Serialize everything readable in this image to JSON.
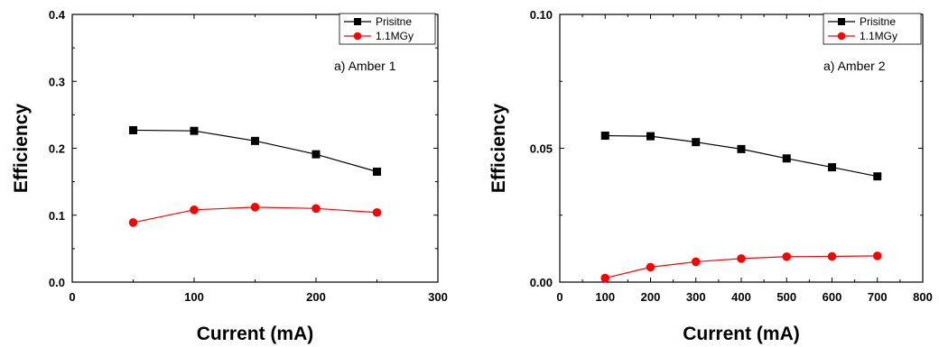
{
  "chart_data": [
    {
      "type": "line",
      "xlabel": "Current (mA)",
      "ylabel": "Efficiency",
      "xlim": [
        0,
        300
      ],
      "ylim": [
        0.0,
        0.4
      ],
      "xticks": [
        0,
        100,
        200,
        300
      ],
      "yticks": [
        0.0,
        0.1,
        0.2,
        0.3,
        0.4
      ],
      "xtick_labels": [
        "0",
        "100",
        "200",
        "300"
      ],
      "ytick_labels": [
        "0.0",
        "0.1",
        "0.2",
        "0.3",
        "0.4"
      ],
      "annotation": "a) Amber 1",
      "legend_position": "top-right",
      "grid": false,
      "series": [
        {
          "name": "Prisitne",
          "color": "#000000",
          "marker": "square",
          "x": [
            50,
            100,
            150,
            200,
            250
          ],
          "y": [
            0.227,
            0.226,
            0.211,
            0.191,
            0.165
          ]
        },
        {
          "name": "1.1MGy",
          "color": "#ff0000",
          "marker": "circle",
          "x": [
            50,
            100,
            150,
            200,
            250
          ],
          "y": [
            0.089,
            0.108,
            0.112,
            0.11,
            0.104
          ]
        }
      ]
    },
    {
      "type": "line",
      "xlabel": "Current (mA)",
      "ylabel": "Efficiency",
      "xlim": [
        0,
        800
      ],
      "ylim": [
        0.0,
        0.1
      ],
      "xticks": [
        0,
        100,
        200,
        300,
        400,
        500,
        600,
        700,
        800
      ],
      "yticks": [
        0.0,
        0.05,
        0.1
      ],
      "xtick_labels": [
        "0",
        "100",
        "200",
        "300",
        "400",
        "500",
        "600",
        "700",
        "800"
      ],
      "ytick_labels": [
        "0.00",
        "0.05",
        "0.10"
      ],
      "annotation": "a) Amber 2",
      "legend_position": "top-right",
      "grid": false,
      "series": [
        {
          "name": "Prisitne",
          "color": "#000000",
          "marker": "square",
          "x": [
            100,
            200,
            300,
            400,
            500,
            600,
            700
          ],
          "y": [
            0.0547,
            0.0545,
            0.0523,
            0.0497,
            0.0462,
            0.0429,
            0.0395
          ]
        },
        {
          "name": "1.1MGy",
          "color": "#ff0000",
          "marker": "circle",
          "x": [
            100,
            200,
            300,
            400,
            500,
            600,
            700
          ],
          "y": [
            0.0015,
            0.0056,
            0.0076,
            0.0088,
            0.0095,
            0.0096,
            0.0098
          ]
        }
      ]
    }
  ]
}
